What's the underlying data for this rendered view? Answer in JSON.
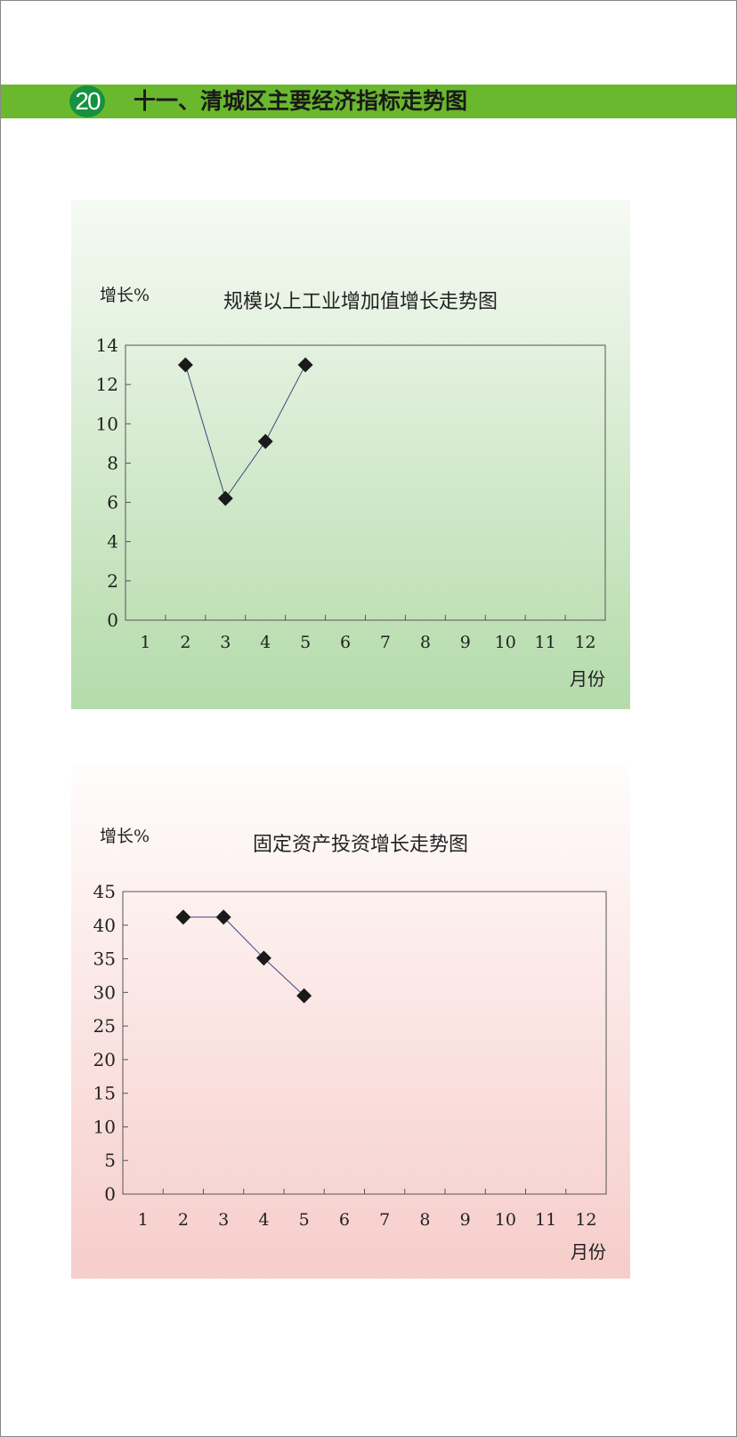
{
  "header": {
    "page_number": "20",
    "title": "十一、清城区主要经济指标走势图"
  },
  "colors": {
    "banner": "#6ab82e",
    "badge": "#15913f",
    "line": "#3a4a7a",
    "marker": "#1a1a1a"
  },
  "chart_data": [
    {
      "type": "line",
      "title": "规模以上工业增加值增长走势图",
      "ylabel": "增长%",
      "xlabel": "月份",
      "categories": [
        "1",
        "2",
        "3",
        "4",
        "5",
        "6",
        "7",
        "8",
        "9",
        "10",
        "11",
        "12"
      ],
      "yticks": [
        "0",
        "2",
        "4",
        "6",
        "8",
        "10",
        "12",
        "14"
      ],
      "ylim": [
        0,
        14
      ],
      "grid": false,
      "series": [
        {
          "x": [
            2,
            3,
            4,
            5
          ],
          "values": [
            13.0,
            6.2,
            9.1,
            13.0
          ]
        }
      ]
    },
    {
      "type": "line",
      "title": "固定资产投资增长走势图",
      "ylabel": "增长%",
      "xlabel": "月份",
      "categories": [
        "1",
        "2",
        "3",
        "4",
        "5",
        "6",
        "7",
        "8",
        "9",
        "10",
        "11",
        "12"
      ],
      "yticks": [
        "0",
        "5",
        "10",
        "15",
        "20",
        "25",
        "30",
        "35",
        "40",
        "45"
      ],
      "ylim": [
        0,
        45
      ],
      "grid": false,
      "series": [
        {
          "x": [
            2,
            3,
            4,
            5
          ],
          "values": [
            41.2,
            41.2,
            35.1,
            29.5
          ]
        }
      ]
    }
  ]
}
